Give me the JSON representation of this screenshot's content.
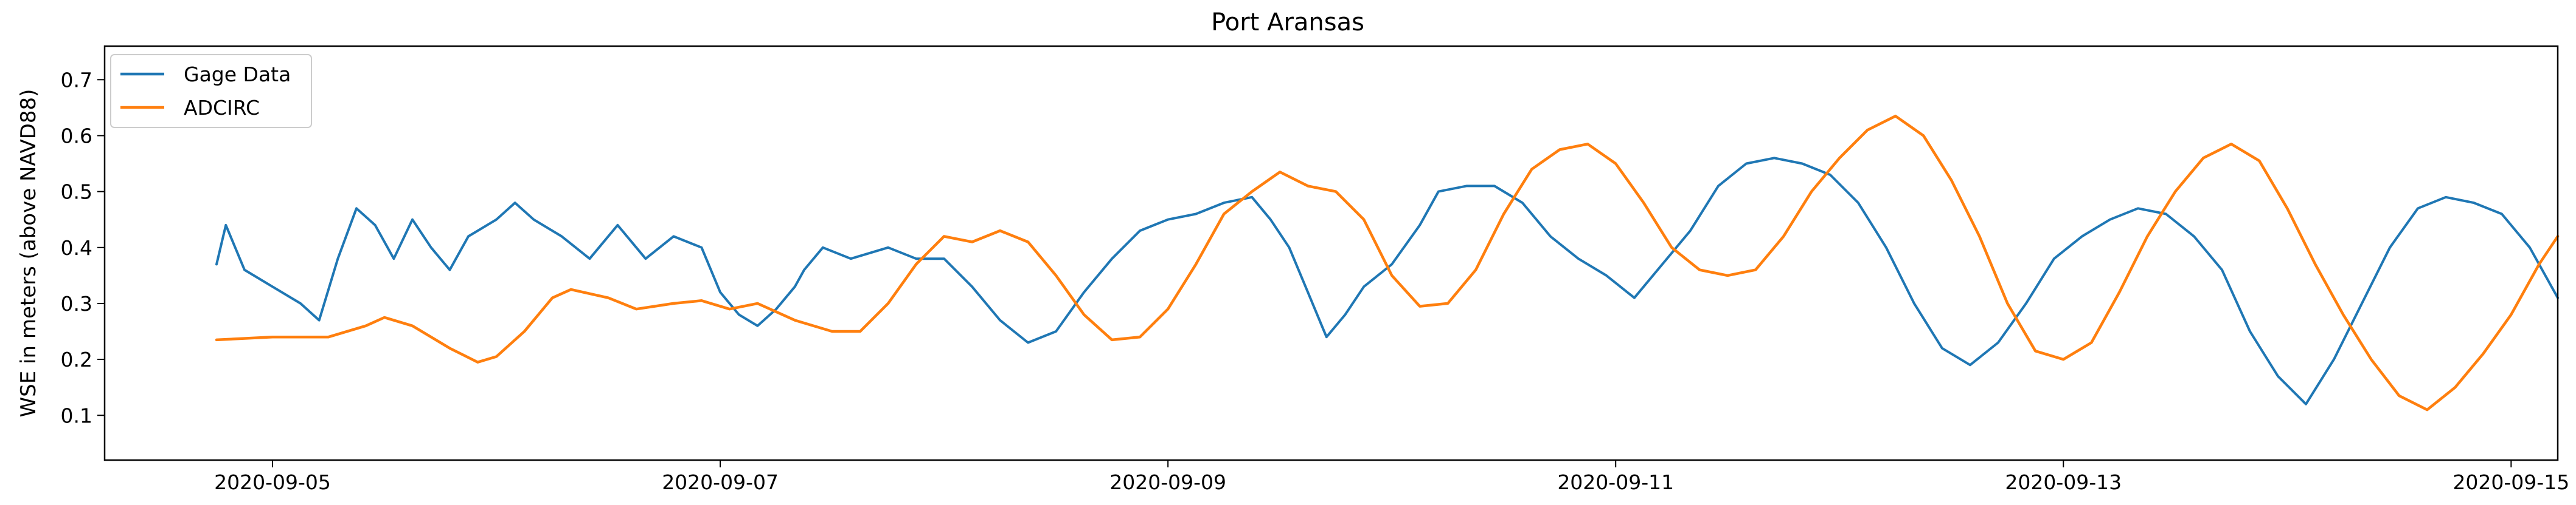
{
  "chart_data": {
    "type": "line",
    "title": "Port Aransas",
    "xlabel": "",
    "ylabel": "WSE in meters (above NAVD88)",
    "xlim": [
      "2020-09-04 06:00",
      "2020-09-15 05:00"
    ],
    "ylim": [
      0.02,
      0.76
    ],
    "xticks": [
      "2020-09-05",
      "2020-09-07",
      "2020-09-09",
      "2020-09-11",
      "2020-09-13",
      "2020-09-15"
    ],
    "yticks": [
      0.1,
      0.2,
      0.3,
      0.4,
      0.5,
      0.6,
      0.7
    ],
    "grid": false,
    "legend": {
      "position": "top-left",
      "entries": [
        "Gage Data",
        "ADCIRC"
      ]
    },
    "series": [
      {
        "name": "Gage Data",
        "color": "#1f77b4",
        "points": [
          [
            "2020-09-04 18:00",
            0.37
          ],
          [
            "2020-09-04 19:00",
            0.44
          ],
          [
            "2020-09-04 21:00",
            0.36
          ],
          [
            "2020-09-05 00:00",
            0.33
          ],
          [
            "2020-09-05 03:00",
            0.3
          ],
          [
            "2020-09-05 05:00",
            0.27
          ],
          [
            "2020-09-05 07:00",
            0.38
          ],
          [
            "2020-09-05 09:00",
            0.47
          ],
          [
            "2020-09-05 11:00",
            0.44
          ],
          [
            "2020-09-05 13:00",
            0.38
          ],
          [
            "2020-09-05 15:00",
            0.45
          ],
          [
            "2020-09-05 17:00",
            0.4
          ],
          [
            "2020-09-05 19:00",
            0.36
          ],
          [
            "2020-09-05 21:00",
            0.42
          ],
          [
            "2020-09-06 00:00",
            0.45
          ],
          [
            "2020-09-06 02:00",
            0.48
          ],
          [
            "2020-09-06 04:00",
            0.45
          ],
          [
            "2020-09-06 07:00",
            0.42
          ],
          [
            "2020-09-06 10:00",
            0.38
          ],
          [
            "2020-09-06 13:00",
            0.44
          ],
          [
            "2020-09-06 16:00",
            0.38
          ],
          [
            "2020-09-06 19:00",
            0.42
          ],
          [
            "2020-09-06 22:00",
            0.4
          ],
          [
            "2020-09-07 00:00",
            0.32
          ],
          [
            "2020-09-07 02:00",
            0.28
          ],
          [
            "2020-09-07 04:00",
            0.26
          ],
          [
            "2020-09-07 06:00",
            0.29
          ],
          [
            "2020-09-07 08:00",
            0.33
          ],
          [
            "2020-09-07 09:00",
            0.36
          ],
          [
            "2020-09-07 11:00",
            0.4
          ],
          [
            "2020-09-07 14:00",
            0.38
          ],
          [
            "2020-09-07 18:00",
            0.4
          ],
          [
            "2020-09-07 21:00",
            0.38
          ],
          [
            "2020-09-08 00:00",
            0.38
          ],
          [
            "2020-09-08 03:00",
            0.33
          ],
          [
            "2020-09-08 06:00",
            0.27
          ],
          [
            "2020-09-08 09:00",
            0.23
          ],
          [
            "2020-09-08 12:00",
            0.25
          ],
          [
            "2020-09-08 15:00",
            0.32
          ],
          [
            "2020-09-08 18:00",
            0.38
          ],
          [
            "2020-09-08 21:00",
            0.43
          ],
          [
            "2020-09-09 00:00",
            0.45
          ],
          [
            "2020-09-09 03:00",
            0.46
          ],
          [
            "2020-09-09 06:00",
            0.48
          ],
          [
            "2020-09-09 09:00",
            0.49
          ],
          [
            "2020-09-09 11:00",
            0.45
          ],
          [
            "2020-09-09 13:00",
            0.4
          ],
          [
            "2020-09-09 15:00",
            0.32
          ],
          [
            "2020-09-09 17:00",
            0.24
          ],
          [
            "2020-09-09 19:00",
            0.28
          ],
          [
            "2020-09-09 21:00",
            0.33
          ],
          [
            "2020-09-10 00:00",
            0.37
          ],
          [
            "2020-09-10 03:00",
            0.44
          ],
          [
            "2020-09-10 05:00",
            0.5
          ],
          [
            "2020-09-10 08:00",
            0.51
          ],
          [
            "2020-09-10 11:00",
            0.51
          ],
          [
            "2020-09-10 14:00",
            0.48
          ],
          [
            "2020-09-10 17:00",
            0.42
          ],
          [
            "2020-09-10 20:00",
            0.38
          ],
          [
            "2020-09-10 23:00",
            0.35
          ],
          [
            "2020-09-11 02:00",
            0.31
          ],
          [
            "2020-09-11 05:00",
            0.37
          ],
          [
            "2020-09-11 08:00",
            0.43
          ],
          [
            "2020-09-11 11:00",
            0.51
          ],
          [
            "2020-09-11 14:00",
            0.55
          ],
          [
            "2020-09-11 17:00",
            0.56
          ],
          [
            "2020-09-11 20:00",
            0.55
          ],
          [
            "2020-09-11 23:00",
            0.53
          ],
          [
            "2020-09-12 02:00",
            0.48
          ],
          [
            "2020-09-12 05:00",
            0.4
          ],
          [
            "2020-09-12 08:00",
            0.3
          ],
          [
            "2020-09-12 11:00",
            0.22
          ],
          [
            "2020-09-12 14:00",
            0.19
          ],
          [
            "2020-09-12 17:00",
            0.23
          ],
          [
            "2020-09-12 20:00",
            0.3
          ],
          [
            "2020-09-12 23:00",
            0.38
          ],
          [
            "2020-09-13 02:00",
            0.42
          ],
          [
            "2020-09-13 05:00",
            0.45
          ],
          [
            "2020-09-13 08:00",
            0.47
          ],
          [
            "2020-09-13 11:00",
            0.46
          ],
          [
            "2020-09-13 14:00",
            0.42
          ],
          [
            "2020-09-13 17:00",
            0.36
          ],
          [
            "2020-09-13 20:00",
            0.25
          ],
          [
            "2020-09-13 23:00",
            0.17
          ],
          [
            "2020-09-14 02:00",
            0.12
          ],
          [
            "2020-09-14 05:00",
            0.2
          ],
          [
            "2020-09-14 08:00",
            0.3
          ],
          [
            "2020-09-14 11:00",
            0.4
          ],
          [
            "2020-09-14 14:00",
            0.47
          ],
          [
            "2020-09-14 17:00",
            0.49
          ],
          [
            "2020-09-14 20:00",
            0.48
          ],
          [
            "2020-09-14 23:00",
            0.46
          ],
          [
            "2020-09-15 02:00",
            0.4
          ],
          [
            "2020-09-15 05:00",
            0.31
          ]
        ]
      },
      {
        "name": "ADCIRC",
        "color": "#ff7f0e",
        "points": [
          [
            "2020-09-04 18:00",
            0.235
          ],
          [
            "2020-09-05 00:00",
            0.24
          ],
          [
            "2020-09-05 06:00",
            0.24
          ],
          [
            "2020-09-05 10:00",
            0.26
          ],
          [
            "2020-09-05 12:00",
            0.275
          ],
          [
            "2020-09-05 15:00",
            0.26
          ],
          [
            "2020-09-05 19:00",
            0.22
          ],
          [
            "2020-09-05 22:00",
            0.195
          ],
          [
            "2020-09-06 00:00",
            0.205
          ],
          [
            "2020-09-06 03:00",
            0.25
          ],
          [
            "2020-09-06 06:00",
            0.31
          ],
          [
            "2020-09-06 08:00",
            0.325
          ],
          [
            "2020-09-06 12:00",
            0.31
          ],
          [
            "2020-09-06 15:00",
            0.29
          ],
          [
            "2020-09-06 19:00",
            0.3
          ],
          [
            "2020-09-06 22:00",
            0.305
          ],
          [
            "2020-09-07 01:00",
            0.29
          ],
          [
            "2020-09-07 04:00",
            0.3
          ],
          [
            "2020-09-07 08:00",
            0.27
          ],
          [
            "2020-09-07 12:00",
            0.25
          ],
          [
            "2020-09-07 15:00",
            0.25
          ],
          [
            "2020-09-07 18:00",
            0.3
          ],
          [
            "2020-09-07 21:00",
            0.37
          ],
          [
            "2020-09-08 00:00",
            0.42
          ],
          [
            "2020-09-08 03:00",
            0.41
          ],
          [
            "2020-09-08 06:00",
            0.43
          ],
          [
            "2020-09-08 09:00",
            0.41
          ],
          [
            "2020-09-08 12:00",
            0.35
          ],
          [
            "2020-09-08 15:00",
            0.28
          ],
          [
            "2020-09-08 18:00",
            0.235
          ],
          [
            "2020-09-08 21:00",
            0.24
          ],
          [
            "2020-09-09 00:00",
            0.29
          ],
          [
            "2020-09-09 03:00",
            0.37
          ],
          [
            "2020-09-09 06:00",
            0.46
          ],
          [
            "2020-09-09 09:00",
            0.5
          ],
          [
            "2020-09-09 12:00",
            0.535
          ],
          [
            "2020-09-09 15:00",
            0.51
          ],
          [
            "2020-09-09 18:00",
            0.5
          ],
          [
            "2020-09-09 21:00",
            0.45
          ],
          [
            "2020-09-10 00:00",
            0.35
          ],
          [
            "2020-09-10 03:00",
            0.295
          ],
          [
            "2020-09-10 06:00",
            0.3
          ],
          [
            "2020-09-10 09:00",
            0.36
          ],
          [
            "2020-09-10 12:00",
            0.46
          ],
          [
            "2020-09-10 15:00",
            0.54
          ],
          [
            "2020-09-10 18:00",
            0.575
          ],
          [
            "2020-09-10 21:00",
            0.585
          ],
          [
            "2020-09-11 00:00",
            0.55
          ],
          [
            "2020-09-11 03:00",
            0.48
          ],
          [
            "2020-09-11 06:00",
            0.4
          ],
          [
            "2020-09-11 09:00",
            0.36
          ],
          [
            "2020-09-11 12:00",
            0.35
          ],
          [
            "2020-09-11 15:00",
            0.36
          ],
          [
            "2020-09-11 18:00",
            0.42
          ],
          [
            "2020-09-11 21:00",
            0.5
          ],
          [
            "2020-09-12 00:00",
            0.56
          ],
          [
            "2020-09-12 03:00",
            0.61
          ],
          [
            "2020-09-12 06:00",
            0.635
          ],
          [
            "2020-09-12 09:00",
            0.6
          ],
          [
            "2020-09-12 12:00",
            0.52
          ],
          [
            "2020-09-12 15:00",
            0.42
          ],
          [
            "2020-09-12 18:00",
            0.3
          ],
          [
            "2020-09-12 21:00",
            0.215
          ],
          [
            "2020-09-13 00:00",
            0.2
          ],
          [
            "2020-09-13 03:00",
            0.23
          ],
          [
            "2020-09-13 06:00",
            0.32
          ],
          [
            "2020-09-13 09:00",
            0.42
          ],
          [
            "2020-09-13 12:00",
            0.5
          ],
          [
            "2020-09-13 15:00",
            0.56
          ],
          [
            "2020-09-13 18:00",
            0.585
          ],
          [
            "2020-09-13 21:00",
            0.555
          ],
          [
            "2020-09-14 00:00",
            0.47
          ],
          [
            "2020-09-14 03:00",
            0.37
          ],
          [
            "2020-09-14 06:00",
            0.28
          ],
          [
            "2020-09-14 09:00",
            0.2
          ],
          [
            "2020-09-14 12:00",
            0.135
          ],
          [
            "2020-09-14 15:00",
            0.11
          ],
          [
            "2020-09-14 18:00",
            0.15
          ],
          [
            "2020-09-14 21:00",
            0.21
          ],
          [
            "2020-09-15 00:00",
            0.28
          ],
          [
            "2020-09-15 03:00",
            0.37
          ],
          [
            "2020-09-15 05:00",
            0.42
          ]
        ]
      }
    ]
  }
}
